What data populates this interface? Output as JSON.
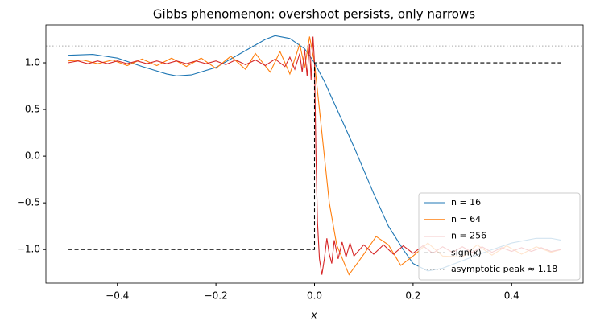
{
  "chart_data": {
    "type": "line",
    "title": "Gibbs phenomenon: overshoot persists, only narrows",
    "xlabel": "x",
    "xlim": [
      -0.545,
      0.545
    ],
    "ylim": [
      -1.36,
      1.405
    ],
    "xticks": [
      {
        "value": -0.4,
        "label": "−0.4"
      },
      {
        "value": -0.2,
        "label": "−0.2"
      },
      {
        "value": 0,
        "label": "0.0"
      },
      {
        "value": 0.2,
        "label": "0.2"
      },
      {
        "value": 0.4,
        "label": "0.4"
      }
    ],
    "yticks": [
      {
        "value": -1,
        "label": "−1.0"
      },
      {
        "value": -0.5,
        "label": "−0.5"
      },
      {
        "value": 0,
        "label": "0.0"
      },
      {
        "value": 0.5,
        "label": "0.5"
      },
      {
        "value": 1,
        "label": "1.0"
      }
    ],
    "legend": "lower right",
    "series": [
      {
        "name": "n = 16",
        "color": "#1f77b4",
        "style": "solid",
        "x": [
          -0.5,
          -0.45,
          -0.4,
          -0.35,
          -0.3,
          -0.28,
          -0.25,
          -0.2,
          -0.15,
          -0.1,
          -0.08,
          -0.05,
          -0.02,
          0,
          0.02,
          0.05,
          0.08,
          0.1,
          0.12,
          0.15,
          0.18,
          0.2,
          0.23,
          0.26,
          0.3,
          0.35,
          0.4,
          0.45,
          0.48,
          0.5
        ],
        "values": [
          1.08,
          1.09,
          1.05,
          0.96,
          0.88,
          0.86,
          0.87,
          0.95,
          1.1,
          1.25,
          1.29,
          1.26,
          1.15,
          1.0,
          0.8,
          0.45,
          0.1,
          -0.15,
          -0.4,
          -0.75,
          -1.0,
          -1.15,
          -1.23,
          -1.2,
          -1.12,
          -1.02,
          -0.93,
          -0.88,
          -0.88,
          -0.9
        ]
      },
      {
        "name": "n = 64",
        "color": "#ff7f0e",
        "style": "solid",
        "x": [
          -0.5,
          -0.47,
          -0.44,
          -0.41,
          -0.38,
          -0.35,
          -0.32,
          -0.29,
          -0.26,
          -0.23,
          -0.2,
          -0.17,
          -0.14,
          -0.12,
          -0.09,
          -0.07,
          -0.05,
          -0.03,
          -0.02,
          -0.01,
          0,
          0.01,
          0.02,
          0.03,
          0.045,
          0.07,
          0.1,
          0.125,
          0.15,
          0.175,
          0.2,
          0.23,
          0.26,
          0.3,
          0.33,
          0.36,
          0.39,
          0.42,
          0.45,
          0.48,
          0.5
        ],
        "values": [
          1.02,
          1.03,
          0.99,
          1.03,
          0.97,
          1.04,
          0.97,
          1.05,
          0.96,
          1.05,
          0.94,
          1.07,
          0.93,
          1.1,
          0.9,
          1.12,
          0.88,
          1.2,
          0.95,
          1.28,
          1.0,
          0.5,
          0.0,
          -0.5,
          -0.95,
          -1.27,
          -1.05,
          -0.86,
          -0.95,
          -1.17,
          -1.07,
          -0.93,
          -1.07,
          -1.08,
          -0.95,
          -1.06,
          -0.96,
          -1.05,
          -0.97,
          -1.03,
          -1.0
        ]
      },
      {
        "name": "n = 256",
        "color": "#d62728",
        "style": "solid",
        "x": [
          -0.5,
          -0.48,
          -0.46,
          -0.44,
          -0.42,
          -0.4,
          -0.38,
          -0.36,
          -0.34,
          -0.32,
          -0.3,
          -0.28,
          -0.26,
          -0.24,
          -0.22,
          -0.2,
          -0.18,
          -0.16,
          -0.14,
          -0.12,
          -0.1,
          -0.08,
          -0.06,
          -0.05,
          -0.04,
          -0.03,
          -0.025,
          -0.02,
          -0.015,
          -0.01,
          -0.007,
          -0.003,
          0,
          0.003,
          0.006,
          0.01,
          0.015,
          0.02,
          0.025,
          0.03,
          0.035,
          0.04,
          0.048,
          0.056,
          0.064,
          0.072,
          0.08,
          0.1,
          0.12,
          0.14,
          0.16,
          0.18,
          0.2,
          0.22,
          0.24,
          0.26,
          0.28,
          0.3,
          0.32,
          0.34,
          0.36,
          0.38,
          0.4,
          0.42,
          0.44,
          0.46,
          0.48,
          0.5
        ],
        "values": [
          1.0,
          1.02,
          0.99,
          1.02,
          0.99,
          1.02,
          0.99,
          1.02,
          0.99,
          1.02,
          0.99,
          1.02,
          0.99,
          1.02,
          0.99,
          1.02,
          0.98,
          1.03,
          0.98,
          1.03,
          0.97,
          1.04,
          0.96,
          1.06,
          0.93,
          1.1,
          0.9,
          1.14,
          0.86,
          1.2,
          0.82,
          1.28,
          1.0,
          0.0,
          -0.7,
          -1.1,
          -1.27,
          -1.1,
          -0.88,
          -1.05,
          -1.15,
          -0.9,
          -1.1,
          -0.92,
          -1.08,
          -0.93,
          -1.07,
          -0.95,
          -1.05,
          -0.95,
          -1.05,
          -0.96,
          -1.04,
          -0.96,
          -1.04,
          -0.97,
          -1.03,
          -0.97,
          -1.03,
          -0.97,
          -1.03,
          -0.98,
          -1.02,
          -0.98,
          -1.02,
          -0.98,
          -1.02,
          -1.0
        ]
      },
      {
        "name": "sign(x)",
        "color": "#000000",
        "style": "dashed",
        "x": [
          -0.5,
          0,
          0,
          0.5
        ],
        "values": [
          -1,
          -1,
          1,
          1
        ]
      }
    ],
    "hline": {
      "name": "asymptotic peak ≈ 1.18",
      "value": 1.18,
      "color": "#aaaaaa",
      "style": "dotted"
    }
  }
}
